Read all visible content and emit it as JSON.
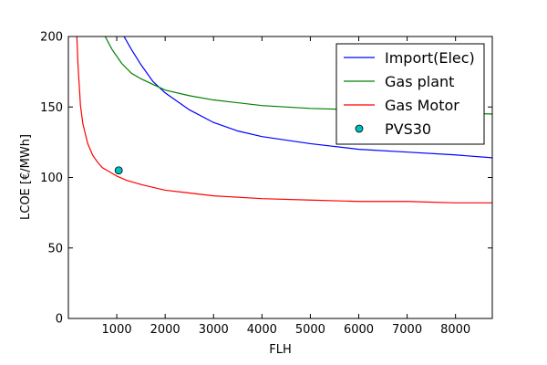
{
  "chart_data": {
    "type": "line",
    "xlabel": "FLH",
    "ylabel": "LCOE [€/MWh]",
    "xlim": [
      0,
      8760
    ],
    "ylim": [
      0,
      200
    ],
    "xticks": [
      1000,
      2000,
      3000,
      4000,
      5000,
      6000,
      7000,
      8000
    ],
    "yticks": [
      0,
      50,
      100,
      150,
      200
    ],
    "grid": false,
    "legend_position": "top-right",
    "series": [
      {
        "name": "Import(Elec)",
        "color": "#0000ff",
        "style": "line",
        "x": [
          1150,
          1300,
          1500,
          1750,
          2000,
          2500,
          3000,
          3500,
          4000,
          5000,
          6000,
          7000,
          8000,
          8760
        ],
        "y": [
          200,
          191,
          180,
          168,
          160,
          148,
          139,
          133,
          129,
          124,
          120,
          118,
          116,
          114
        ]
      },
      {
        "name": "Gas plant",
        "color": "#008000",
        "style": "line",
        "x": [
          760,
          900,
          1100,
          1300,
          1500,
          1750,
          2000,
          2500,
          3000,
          4000,
          5000,
          6000,
          7000,
          8000,
          8760
        ],
        "y": [
          200,
          191,
          181,
          174,
          170,
          166,
          162,
          158,
          155,
          151,
          149,
          148,
          147,
          146,
          145
        ]
      },
      {
        "name": "Gas Motor",
        "color": "#ff0000",
        "style": "line",
        "x": [
          175,
          200,
          250,
          300,
          400,
          500,
          600,
          700,
          800,
          1000,
          1200,
          1500,
          2000,
          2500,
          3000,
          4000,
          5000,
          6000,
          7000,
          8000,
          8760
        ],
        "y": [
          200,
          179,
          151,
          138,
          124,
          116,
          111,
          107,
          105,
          101,
          98,
          95,
          91,
          89,
          87,
          85,
          84,
          83,
          83,
          82,
          82
        ]
      },
      {
        "name": "PVS30",
        "color": "#00bfbf",
        "style": "marker",
        "x": [
          1040
        ],
        "y": [
          105
        ]
      }
    ]
  }
}
